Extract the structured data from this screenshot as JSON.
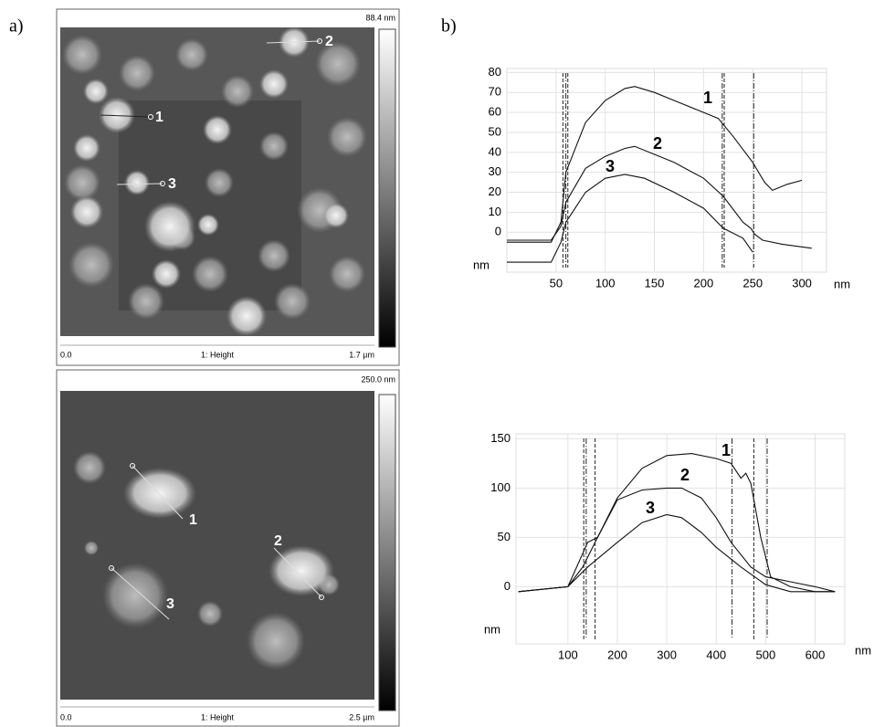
{
  "panels": [
    "a)",
    "b)"
  ],
  "images": [
    {
      "scale_max": "88.4 nm",
      "zero": "0.0",
      "channel": "1: Height",
      "size": "1.7 µm",
      "markers": [
        "1",
        "2",
        "3"
      ]
    },
    {
      "scale_max": "250.0 nm",
      "zero": "0.0",
      "channel": "1: Height",
      "size": "2.5 µm",
      "markers": [
        "1",
        "2",
        "3"
      ]
    }
  ],
  "chart_data": [
    {
      "type": "line",
      "x_label": "nm",
      "y_label": "nm",
      "grid": true,
      "xlim": [
        0,
        325
      ],
      "ylim": [
        -20,
        82
      ],
      "xticks": [
        50,
        100,
        150,
        200,
        250,
        300
      ],
      "yticks": [
        0,
        10,
        20,
        30,
        40,
        50,
        60,
        70,
        80
      ],
      "cursors": [
        57,
        60,
        62,
        219,
        221,
        251
      ],
      "series": [
        {
          "name": "1",
          "color": "#111111",
          "x": [
            0,
            45,
            55,
            60,
            80,
            100,
            120,
            130,
            150,
            170,
            200,
            215,
            230,
            250,
            262,
            270,
            285,
            300
          ],
          "values": [
            -5,
            -5,
            5,
            30,
            55,
            66,
            72,
            73,
            70,
            66,
            60,
            57,
            48,
            35,
            25,
            21,
            24,
            26
          ]
        },
        {
          "name": "2",
          "color": "#111111",
          "x": [
            0,
            45,
            55,
            60,
            80,
            100,
            120,
            130,
            150,
            170,
            200,
            220,
            240,
            248,
            252,
            260,
            280,
            310
          ],
          "values": [
            -4,
            -4,
            3,
            15,
            32,
            38,
            42,
            43,
            39,
            35,
            27,
            18,
            5,
            2,
            -1,
            -4,
            -6,
            -8
          ]
        },
        {
          "name": "3",
          "color": "#111111",
          "x": [
            0,
            45,
            55,
            60,
            80,
            100,
            120,
            140,
            170,
            200,
            220,
            240,
            250
          ],
          "values": [
            -15,
            -15,
            -5,
            5,
            20,
            27,
            29,
            27,
            20,
            12,
            2,
            -3,
            -10
          ]
        }
      ]
    },
    {
      "type": "line",
      "x_label": "nm",
      "y_label": "nm",
      "grid": true,
      "xlim": [
        -5,
        660
      ],
      "ylim": [
        -58,
        155
      ],
      "xticks": [
        100,
        200,
        300,
        400,
        500,
        600
      ],
      "yticks": [
        0,
        50,
        100,
        150
      ],
      "cursors": [
        132,
        137,
        155,
        432,
        476,
        503
      ],
      "series": [
        {
          "name": "1",
          "color": "#111111",
          "x": [
            0,
            100,
            130,
            150,
            200,
            250,
            300,
            350,
            400,
            430,
            450,
            460,
            470,
            490,
            510,
            550,
            600,
            640
          ],
          "values": [
            -5,
            0,
            20,
            40,
            90,
            120,
            133,
            135,
            130,
            125,
            110,
            115,
            105,
            50,
            10,
            0,
            -5,
            -5
          ]
        },
        {
          "name": "2",
          "color": "#111111",
          "x": [
            0,
            100,
            140,
            160,
            200,
            250,
            300,
            330,
            370,
            400,
            430,
            470,
            500,
            550,
            600,
            640
          ],
          "values": [
            -5,
            0,
            45,
            50,
            88,
            98,
            100,
            100,
            90,
            70,
            45,
            20,
            10,
            5,
            0,
            -5
          ]
        },
        {
          "name": "3",
          "color": "#111111",
          "x": [
            0,
            100,
            140,
            200,
            250,
            300,
            330,
            370,
            400,
            450,
            500,
            550,
            600,
            640
          ],
          "values": [
            -5,
            0,
            20,
            45,
            65,
            73,
            70,
            55,
            40,
            20,
            2,
            -5,
            -5,
            -5
          ]
        }
      ]
    }
  ]
}
